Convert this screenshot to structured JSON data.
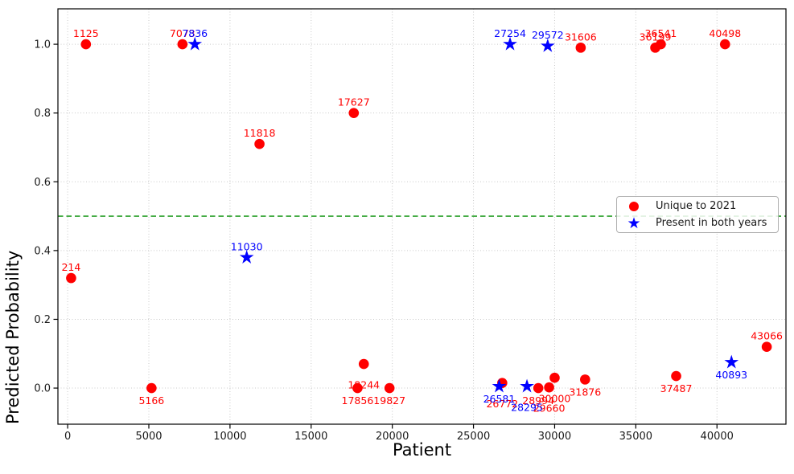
{
  "chart_data": {
    "type": "scatter",
    "title": "",
    "xlabel": "Patient",
    "ylabel": "Predicted Probability",
    "xlim": [
      -600,
      44250
    ],
    "ylim": [
      -0.105,
      1.103
    ],
    "x_ticks": [
      0,
      5000,
      10000,
      15000,
      20000,
      25000,
      30000,
      35000,
      40000
    ],
    "y_ticks": [
      0.0,
      0.2,
      0.4,
      0.6,
      0.8,
      1.0
    ],
    "grid": {
      "enabled": true,
      "style": "dotted",
      "color": "#c9c9c9"
    },
    "threshold_line": {
      "y": 0.5,
      "color": "#2ca02c",
      "style": "dashed"
    },
    "legend": {
      "position": "center-right",
      "entries": [
        {
          "label": "Unique to 2021",
          "marker": "circle",
          "color": "#ff0000"
        },
        {
          "label": "Present in both years",
          "marker": "star",
          "color": "#0000ff"
        }
      ]
    },
    "series": [
      {
        "name": "Unique to 2021",
        "marker": "circle",
        "color": "#ff0000",
        "points": [
          {
            "id": "214",
            "x": 214,
            "y": 0.32,
            "label_pos": "above"
          },
          {
            "id": "1125",
            "x": 1125,
            "y": 1.0,
            "label_pos": "above"
          },
          {
            "id": "5166",
            "x": 5166,
            "y": 0.0,
            "label_pos": "below"
          },
          {
            "id": "7073",
            "x": 7073,
            "y": 1.0,
            "label_pos": "above"
          },
          {
            "id": "11818",
            "x": 11818,
            "y": 0.71,
            "label_pos": "above"
          },
          {
            "id": "17627",
            "x": 17627,
            "y": 0.8,
            "label_pos": "above"
          },
          {
            "id": "17856",
            "x": 17856,
            "y": 0.0,
            "label_pos": "below"
          },
          {
            "id": "18244",
            "x": 18244,
            "y": 0.07,
            "label_pos": "below2"
          },
          {
            "id": "19827",
            "x": 19827,
            "y": 0.0,
            "label_pos": "below"
          },
          {
            "id": "26772",
            "x": 26772,
            "y": 0.015,
            "label_pos": "below2"
          },
          {
            "id": "28994",
            "x": 28994,
            "y": 0.0,
            "label_pos": "below"
          },
          {
            "id": "29660",
            "x": 29660,
            "y": 0.002,
            "label_pos": "below2"
          },
          {
            "id": "30000",
            "x": 30000,
            "y": 0.03,
            "label_pos": "below2"
          },
          {
            "id": "31606",
            "x": 31606,
            "y": 0.99,
            "label_pos": "above"
          },
          {
            "id": "31876",
            "x": 31876,
            "y": 0.025,
            "label_pos": "below"
          },
          {
            "id": "36199",
            "x": 36199,
            "y": 0.99,
            "label_pos": "above"
          },
          {
            "id": "36541",
            "x": 36541,
            "y": 1.0,
            "label_pos": "above"
          },
          {
            "id": "37487",
            "x": 37487,
            "y": 0.035,
            "label_pos": "below"
          },
          {
            "id": "40498",
            "x": 40498,
            "y": 1.0,
            "label_pos": "above"
          },
          {
            "id": "43066",
            "x": 43066,
            "y": 0.12,
            "label_pos": "above"
          }
        ]
      },
      {
        "name": "Present in both years",
        "marker": "star",
        "color": "#0000ff",
        "points": [
          {
            "id": "7836",
            "x": 7836,
            "y": 1.0,
            "label_pos": "above"
          },
          {
            "id": "11030",
            "x": 11030,
            "y": 0.38,
            "label_pos": "above"
          },
          {
            "id": "26581",
            "x": 26581,
            "y": 0.005,
            "label_pos": "below"
          },
          {
            "id": "27254",
            "x": 27254,
            "y": 1.0,
            "label_pos": "above"
          },
          {
            "id": "28295",
            "x": 28295,
            "y": 0.005,
            "label_pos": "below2"
          },
          {
            "id": "29572",
            "x": 29572,
            "y": 0.995,
            "label_pos": "above"
          },
          {
            "id": "40893",
            "x": 40893,
            "y": 0.075,
            "label_pos": "below"
          }
        ]
      }
    ]
  }
}
